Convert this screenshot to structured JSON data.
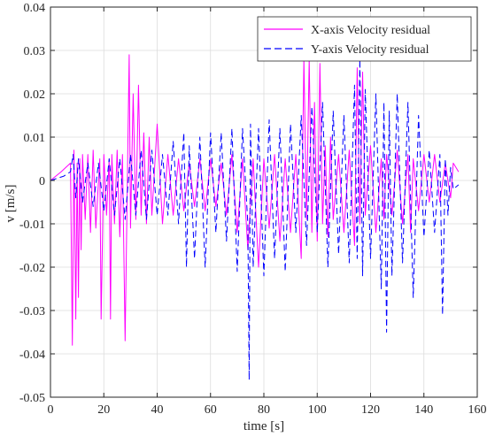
{
  "chart_data": {
    "type": "line",
    "title": "",
    "xlabel": "time [s]",
    "ylabel": "v [m/s]",
    "xlim": [
      0,
      160
    ],
    "ylim": [
      -0.05,
      0.04
    ],
    "xticks": [
      0,
      20,
      40,
      60,
      80,
      100,
      120,
      140,
      160
    ],
    "yticks": [
      -0.05,
      -0.04,
      -0.03,
      -0.02,
      -0.01,
      0,
      0.01,
      0.02,
      0.03,
      0.04
    ],
    "xtick_labels": [
      "0",
      "20",
      "40",
      "60",
      "80",
      "100",
      "120",
      "140",
      "160"
    ],
    "ytick_labels": [
      "-0.05",
      "-0.04",
      "-0.03",
      "-0.02",
      "-0.01",
      "0",
      "0.01",
      "0.02",
      "0.03",
      "0.04"
    ],
    "grid": true,
    "legend_position": "top-right",
    "series": [
      {
        "name": "X-axis Velocity residual",
        "color": "#ff00ff",
        "style": "solid",
        "x": [
          0,
          4,
          7.5,
          8.2,
          8.8,
          9.5,
          10,
          10.5,
          11,
          11.5,
          12,
          13,
          14,
          15,
          16,
          17,
          18.5,
          19,
          20,
          21,
          22,
          22.5,
          23,
          24,
          25,
          26,
          27,
          28,
          29,
          29.5,
          30,
          31,
          32,
          33,
          34,
          35,
          36,
          37,
          38,
          40,
          42,
          44,
          46,
          48,
          50,
          52,
          54,
          56,
          58,
          60,
          62,
          64,
          66,
          68,
          70,
          72,
          74,
          76,
          78,
          80,
          82,
          84,
          86,
          88,
          90,
          92,
          94,
          95,
          96,
          97,
          98,
          99,
          100,
          101,
          102,
          103,
          104,
          105,
          106,
          108,
          110,
          112,
          114,
          115,
          116,
          117,
          118,
          120,
          122,
          124,
          125,
          126,
          128,
          130,
          132,
          134,
          135,
          136,
          138,
          140,
          142,
          144,
          146,
          148,
          150,
          151,
          152,
          153
        ],
        "y": [
          0,
          0.002,
          0.004,
          -0.038,
          0.007,
          -0.032,
          0.004,
          -0.027,
          0.005,
          -0.016,
          0.006,
          -0.009,
          0.006,
          -0.012,
          0.007,
          -0.011,
          0.005,
          -0.032,
          0.006,
          -0.008,
          0.005,
          -0.032,
          0.006,
          -0.01,
          0.007,
          -0.013,
          0.006,
          -0.037,
          0.008,
          0.029,
          -0.011,
          0.02,
          -0.009,
          0.022,
          -0.008,
          0.011,
          -0.01,
          0.01,
          -0.008,
          0.013,
          -0.01,
          0.006,
          -0.008,
          0.005,
          -0.007,
          0.004,
          -0.006,
          0.005,
          -0.007,
          0.005,
          -0.006,
          0.004,
          -0.008,
          0.006,
          -0.012,
          0.005,
          -0.016,
          0.005,
          -0.02,
          0.005,
          -0.011,
          0.006,
          -0.014,
          0.005,
          -0.012,
          0.006,
          -0.018,
          0.028,
          -0.009,
          0.028,
          -0.012,
          0.018,
          -0.014,
          0.027,
          -0.01,
          0.008,
          -0.013,
          0.01,
          -0.009,
          0.006,
          -0.012,
          0.007,
          -0.015,
          0.026,
          -0.01,
          0.025,
          -0.008,
          0.008,
          -0.012,
          0.005,
          -0.009,
          0.006,
          -0.008,
          0.007,
          -0.01,
          0.006,
          -0.012,
          0.005,
          -0.007,
          0.006,
          -0.005,
          0.006,
          -0.005,
          0.004,
          -0.004,
          0.004,
          0.003,
          0.002
        ]
      },
      {
        "name": "Y-axis Velocity residual",
        "color": "#0000ff",
        "style": "dashed",
        "x": [
          0,
          5,
          7.5,
          8.5,
          9.5,
          10.5,
          12,
          14,
          16,
          18,
          20,
          22,
          24,
          26,
          28,
          30,
          32,
          34,
          36,
          38,
          40,
          42,
          44,
          46,
          48,
          50,
          51,
          52,
          54,
          56,
          58,
          60,
          62,
          64,
          66,
          68,
          70,
          72,
          74,
          74.5,
          75,
          76,
          78,
          80,
          82,
          84,
          86,
          88,
          90,
          92,
          94,
          96,
          98,
          100,
          102,
          104,
          106,
          108,
          110,
          112,
          114,
          115,
          116,
          117,
          118,
          120,
          122,
          124,
          125,
          126,
          127,
          128,
          130,
          132,
          134,
          136,
          138,
          140,
          142,
          144,
          146,
          147,
          148,
          149,
          150,
          151,
          152,
          153
        ],
        "y": [
          0,
          0.001,
          0.002,
          0.006,
          -0.004,
          0.005,
          -0.005,
          0.004,
          -0.006,
          0.004,
          -0.007,
          0.005,
          -0.008,
          0.005,
          -0.009,
          0.006,
          -0.008,
          0.007,
          -0.009,
          0.007,
          -0.008,
          0.006,
          -0.008,
          0.009,
          -0.01,
          0.011,
          -0.02,
          0.008,
          -0.018,
          0.01,
          -0.02,
          0.011,
          -0.012,
          0.011,
          -0.014,
          0.012,
          -0.021,
          0.012,
          -0.01,
          -0.046,
          0.013,
          -0.02,
          0.012,
          -0.022,
          0.014,
          -0.018,
          0.012,
          -0.021,
          0.013,
          -0.012,
          0.015,
          -0.015,
          0.017,
          -0.012,
          0.018,
          -0.02,
          0.016,
          -0.017,
          0.015,
          -0.019,
          0.022,
          -0.018,
          0.028,
          -0.022,
          0.021,
          -0.018,
          0.02,
          -0.025,
          0.018,
          -0.035,
          0.016,
          -0.022,
          0.02,
          -0.019,
          0.018,
          -0.027,
          0.015,
          -0.013,
          0.007,
          -0.012,
          0.006,
          -0.031,
          0.005,
          -0.008,
          0.003,
          -0.002,
          -0.0015,
          -0.001
        ]
      }
    ]
  }
}
